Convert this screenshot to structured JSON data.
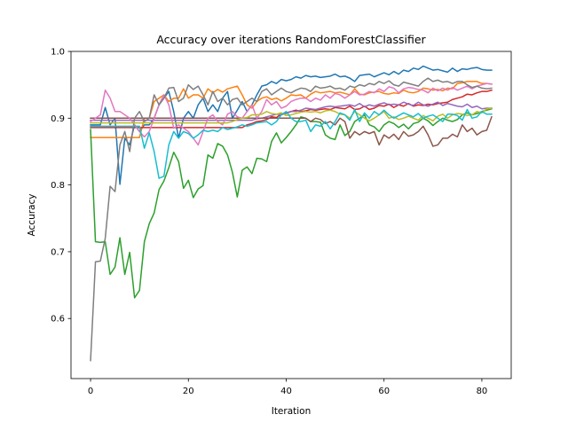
{
  "chart_data": {
    "type": "line",
    "title": "Accuracy over iterations RandomForestClassifier",
    "xlabel": "Iteration",
    "ylabel": "Accuracy",
    "xlim": [
      -4,
      86
    ],
    "ylim": [
      0.51,
      1.0
    ],
    "xticks": [
      0,
      20,
      40,
      60,
      80
    ],
    "yticks": [
      0.6,
      0.7,
      0.8,
      0.9,
      1.0
    ],
    "xtick_labels": [
      "0",
      "20",
      "40",
      "60",
      "80"
    ],
    "ytick_labels": [
      "0.6",
      "0.7",
      "0.8",
      "0.9",
      "1.0"
    ],
    "grid": false,
    "legend": "none",
    "series": [
      {
        "color": "#1f77b4",
        "values": [
          0.89,
          0.89,
          0.89,
          0.916,
          0.89,
          0.9,
          0.801,
          0.87,
          0.86,
          0.89,
          0.88,
          0.89,
          0.89,
          0.9,
          0.92,
          0.93,
          0.94,
          0.91,
          0.87,
          0.9,
          0.91,
          0.9,
          0.92,
          0.93,
          0.91,
          0.92,
          0.91,
          0.93,
          0.94,
          0.9,
          0.912,
          0.925,
          0.91,
          0.92,
          0.935,
          0.948,
          0.95,
          0.955,
          0.952,
          0.958,
          0.956,
          0.958,
          0.962,
          0.96,
          0.964,
          0.962,
          0.963,
          0.961,
          0.962,
          0.963,
          0.966,
          0.962,
          0.963,
          0.96,
          0.955,
          0.964,
          0.965,
          0.966,
          0.962,
          0.965,
          0.968,
          0.965,
          0.97,
          0.966,
          0.972,
          0.97,
          0.975,
          0.973,
          0.978,
          0.975,
          0.972,
          0.973,
          0.971,
          0.969,
          0.975,
          0.97,
          0.974,
          0.973,
          0.975,
          0.976,
          0.973,
          0.972,
          0.972
        ]
      },
      {
        "color": "#ff7f0e",
        "values": [
          0.871,
          0.871,
          0.871,
          0.871,
          0.871,
          0.871,
          0.871,
          0.871,
          0.871,
          0.871,
          0.871,
          0.9,
          0.9,
          0.925,
          0.93,
          0.935,
          0.925,
          0.93,
          0.93,
          0.944,
          0.93,
          0.935,
          0.935,
          0.93,
          0.944,
          0.938,
          0.943,
          0.939,
          0.944,
          0.946,
          0.948,
          0.935,
          0.92,
          0.915,
          0.925,
          0.93,
          0.932,
          0.928,
          0.93,
          0.926,
          0.93,
          0.935,
          0.934,
          0.935,
          0.93,
          0.936,
          0.94,
          0.938,
          0.939,
          0.94,
          0.938,
          0.939,
          0.937,
          0.935,
          0.944,
          0.936,
          0.935,
          0.938,
          0.939,
          0.94,
          0.937,
          0.936,
          0.938,
          0.937,
          0.942,
          0.939,
          0.938,
          0.94,
          0.945,
          0.944,
          0.942,
          0.943,
          0.941,
          0.945,
          0.944,
          0.952,
          0.953,
          0.955,
          0.955,
          0.955,
          0.952,
          0.952,
          0.951
        ]
      },
      {
        "color": "#2ca02c",
        "values": [
          0.883,
          0.715,
          0.714,
          0.715,
          0.666,
          0.677,
          0.721,
          0.666,
          0.699,
          0.631,
          0.642,
          0.715,
          0.742,
          0.758,
          0.793,
          0.806,
          0.826,
          0.849,
          0.835,
          0.795,
          0.807,
          0.781,
          0.794,
          0.799,
          0.845,
          0.84,
          0.862,
          0.858,
          0.845,
          0.819,
          0.782,
          0.822,
          0.827,
          0.817,
          0.84,
          0.839,
          0.835,
          0.865,
          0.878,
          0.863,
          0.871,
          0.88,
          0.89,
          0.902,
          0.9,
          0.895,
          0.895,
          0.894,
          0.875,
          0.87,
          0.868,
          0.89,
          0.874,
          0.88,
          0.895,
          0.9,
          0.905,
          0.89,
          0.887,
          0.88,
          0.89,
          0.895,
          0.892,
          0.886,
          0.891,
          0.884,
          0.892,
          0.894,
          0.9,
          0.896,
          0.889,
          0.895,
          0.9,
          0.897,
          0.895,
          0.898,
          0.905,
          0.908,
          0.905,
          0.907,
          0.91,
          0.912,
          0.914
        ]
      },
      {
        "color": "#d62728",
        "values": [
          0.886,
          0.886,
          0.886,
          0.886,
          0.886,
          0.886,
          0.886,
          0.886,
          0.886,
          0.886,
          0.886,
          0.886,
          0.886,
          0.886,
          0.886,
          0.886,
          0.886,
          0.886,
          0.886,
          0.886,
          0.886,
          0.886,
          0.886,
          0.886,
          0.886,
          0.886,
          0.886,
          0.886,
          0.886,
          0.886,
          0.886,
          0.886,
          0.89,
          0.892,
          0.895,
          0.896,
          0.898,
          0.902,
          0.901,
          0.906,
          0.908,
          0.91,
          0.912,
          0.91,
          0.911,
          0.913,
          0.912,
          0.913,
          0.914,
          0.913,
          0.916,
          0.915,
          0.914,
          0.918,
          0.913,
          0.914,
          0.918,
          0.913,
          0.915,
          0.919,
          0.918,
          0.921,
          0.916,
          0.92,
          0.918,
          0.922,
          0.918,
          0.92,
          0.919,
          0.921,
          0.92,
          0.922,
          0.923,
          0.924,
          0.928,
          0.93,
          0.932,
          0.936,
          0.935,
          0.938,
          0.94,
          0.94,
          0.942
        ]
      },
      {
        "color": "#9467bd",
        "values": [
          0.897,
          0.897,
          0.897,
          0.897,
          0.897,
          0.897,
          0.897,
          0.897,
          0.897,
          0.897,
          0.897,
          0.897,
          0.897,
          0.897,
          0.897,
          0.897,
          0.897,
          0.897,
          0.897,
          0.897,
          0.897,
          0.897,
          0.897,
          0.897,
          0.897,
          0.897,
          0.897,
          0.897,
          0.897,
          0.897,
          0.897,
          0.897,
          0.897,
          0.897,
          0.899,
          0.9,
          0.902,
          0.904,
          0.906,
          0.905,
          0.907,
          0.91,
          0.91,
          0.912,
          0.915,
          0.914,
          0.913,
          0.915,
          0.917,
          0.918,
          0.917,
          0.918,
          0.919,
          0.92,
          0.918,
          0.922,
          0.917,
          0.92,
          0.918,
          0.921,
          0.923,
          0.92,
          0.921,
          0.92,
          0.924,
          0.921,
          0.919,
          0.924,
          0.92,
          0.918,
          0.921,
          0.924,
          0.919,
          0.922,
          0.92,
          0.918,
          0.917,
          0.921,
          0.916,
          0.918,
          0.914,
          0.915,
          0.915
        ]
      },
      {
        "color": "#8c564b",
        "values": [
          0.9,
          0.9,
          0.9,
          0.9,
          0.9,
          0.9,
          0.9,
          0.9,
          0.9,
          0.9,
          0.9,
          0.9,
          0.9,
          0.9,
          0.9,
          0.9,
          0.9,
          0.9,
          0.9,
          0.9,
          0.9,
          0.9,
          0.9,
          0.9,
          0.9,
          0.9,
          0.9,
          0.9,
          0.9,
          0.9,
          0.9,
          0.9,
          0.9,
          0.9,
          0.9,
          0.9,
          0.9,
          0.9,
          0.9,
          0.9,
          0.9,
          0.9,
          0.9,
          0.9,
          0.9,
          0.895,
          0.9,
          0.898,
          0.892,
          0.895,
          0.89,
          0.9,
          0.895,
          0.87,
          0.88,
          0.875,
          0.88,
          0.877,
          0.88,
          0.86,
          0.875,
          0.87,
          0.876,
          0.868,
          0.88,
          0.873,
          0.875,
          0.88,
          0.888,
          0.875,
          0.858,
          0.86,
          0.87,
          0.87,
          0.876,
          0.872,
          0.89,
          0.88,
          0.885,
          0.875,
          0.88,
          0.882,
          0.902
        ]
      },
      {
        "color": "#e377c2",
        "values": [
          0.895,
          0.9,
          0.905,
          0.942,
          0.93,
          0.91,
          0.91,
          0.905,
          0.9,
          0.89,
          0.88,
          0.872,
          0.88,
          0.9,
          0.92,
          0.935,
          0.92,
          0.885,
          0.89,
          0.885,
          0.88,
          0.87,
          0.86,
          0.88,
          0.9,
          0.905,
          0.895,
          0.89,
          0.906,
          0.91,
          0.902,
          0.9,
          0.91,
          0.92,
          0.9,
          0.91,
          0.928,
          0.92,
          0.925,
          0.915,
          0.918,
          0.925,
          0.928,
          0.93,
          0.93,
          0.925,
          0.93,
          0.927,
          0.935,
          0.93,
          0.937,
          0.935,
          0.93,
          0.935,
          0.94,
          0.935,
          0.936,
          0.94,
          0.938,
          0.944,
          0.94,
          0.947,
          0.945,
          0.938,
          0.944,
          0.946,
          0.945,
          0.943,
          0.942,
          0.938,
          0.945,
          0.941,
          0.945,
          0.942,
          0.946,
          0.942,
          0.945,
          0.948,
          0.944,
          0.948,
          0.95,
          0.952,
          0.951
        ]
      },
      {
        "color": "#7f7f7f",
        "values": [
          0.537,
          0.685,
          0.686,
          0.72,
          0.798,
          0.79,
          0.86,
          0.88,
          0.85,
          0.9,
          0.91,
          0.895,
          0.9,
          0.935,
          0.92,
          0.93,
          0.945,
          0.946,
          0.925,
          0.93,
          0.95,
          0.943,
          0.948,
          0.935,
          0.92,
          0.94,
          0.925,
          0.93,
          0.92,
          0.928,
          0.93,
          0.92,
          0.925,
          0.93,
          0.925,
          0.94,
          0.944,
          0.935,
          0.94,
          0.945,
          0.94,
          0.938,
          0.942,
          0.945,
          0.944,
          0.94,
          0.948,
          0.945,
          0.946,
          0.948,
          0.944,
          0.945,
          0.942,
          0.948,
          0.946,
          0.95,
          0.948,
          0.952,
          0.95,
          0.955,
          0.952,
          0.956,
          0.95,
          0.948,
          0.954,
          0.952,
          0.95,
          0.948,
          0.955,
          0.96,
          0.955,
          0.957,
          0.954,
          0.955,
          0.952,
          0.955,
          0.955,
          0.95,
          0.946,
          0.948,
          0.945,
          0.944,
          0.945
        ]
      },
      {
        "color": "#bcbd22",
        "values": [
          0.893,
          0.893,
          0.893,
          0.893,
          0.893,
          0.893,
          0.893,
          0.893,
          0.893,
          0.893,
          0.893,
          0.893,
          0.893,
          0.893,
          0.893,
          0.893,
          0.893,
          0.893,
          0.893,
          0.893,
          0.893,
          0.893,
          0.893,
          0.893,
          0.893,
          0.893,
          0.893,
          0.893,
          0.893,
          0.895,
          0.898,
          0.9,
          0.901,
          0.905,
          0.905,
          0.906,
          0.91,
          0.907,
          0.906,
          0.908,
          0.904,
          0.905,
          0.907,
          0.909,
          0.91,
          0.909,
          0.91,
          0.908,
          0.911,
          0.912,
          0.91,
          0.906,
          0.905,
          0.9,
          0.91,
          0.905,
          0.9,
          0.896,
          0.9,
          0.905,
          0.91,
          0.9,
          0.902,
          0.898,
          0.9,
          0.903,
          0.9,
          0.897,
          0.904,
          0.9,
          0.896,
          0.903,
          0.906,
          0.9,
          0.905,
          0.907,
          0.906,
          0.904,
          0.905,
          0.91,
          0.908,
          0.914,
          0.915
        ]
      },
      {
        "color": "#17becf",
        "values": [
          0.888,
          0.888,
          0.888,
          0.888,
          0.888,
          0.888,
          0.888,
          0.888,
          0.888,
          0.888,
          0.888,
          0.855,
          0.878,
          0.85,
          0.81,
          0.813,
          0.86,
          0.88,
          0.87,
          0.88,
          0.877,
          0.87,
          0.875,
          0.882,
          0.88,
          0.882,
          0.88,
          0.886,
          0.883,
          0.885,
          0.887,
          0.89,
          0.888,
          0.89,
          0.893,
          0.894,
          0.895,
          0.89,
          0.895,
          0.905,
          0.91,
          0.9,
          0.895,
          0.895,
          0.897,
          0.88,
          0.89,
          0.888,
          0.895,
          0.884,
          0.895,
          0.908,
          0.905,
          0.897,
          0.913,
          0.895,
          0.908,
          0.9,
          0.91,
          0.905,
          0.912,
          0.905,
          0.9,
          0.904,
          0.908,
          0.905,
          0.902,
          0.907,
          0.9,
          0.903,
          0.905,
          0.9,
          0.895,
          0.906,
          0.906,
          0.904,
          0.897,
          0.913,
          0.9,
          0.902,
          0.91,
          0.906,
          0.906
        ]
      }
    ]
  }
}
